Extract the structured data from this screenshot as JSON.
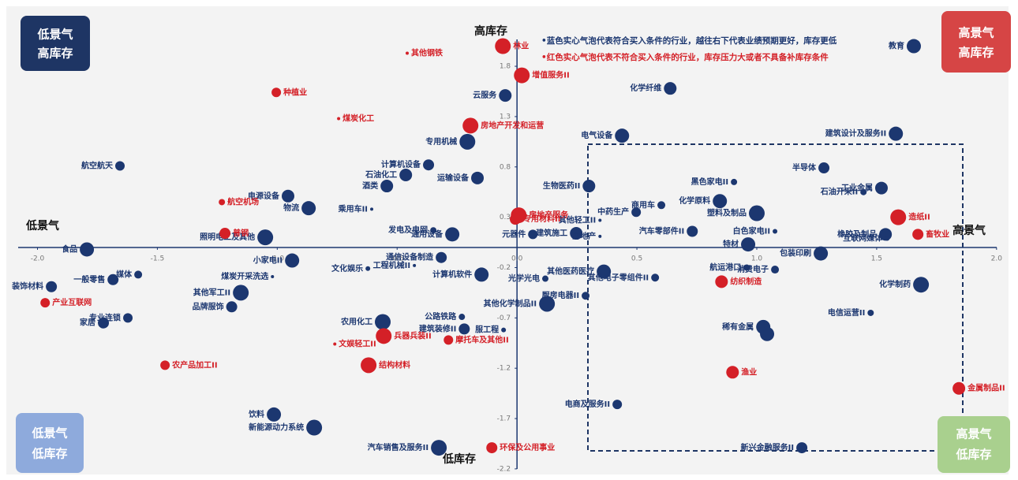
{
  "chart_data": {
    "type": "bubble",
    "x_left_label": "低景气",
    "x_right_label": "高景气",
    "y_top_label": "高库存",
    "y_bottom_label": "低库存",
    "quadrant_labels": {
      "top_left": [
        "低景气",
        "高库存"
      ],
      "top_right": [
        "高景气",
        "高库存"
      ],
      "bottom_left": [
        "低景气",
        "低库存"
      ],
      "bottom_right": [
        "高景气",
        "低库存"
      ]
    },
    "notes": [
      "•蓝色实心气泡代表符合买入条件的行业，越往右下代表业绩预期更好，库存更低",
      "•红色实心气泡代表不符合买入条件的行业，库存压力大或者不具备补库存条件"
    ],
    "xlim": [
      -2.13,
      2.05
    ],
    "ylim": [
      -2.24,
      2.38
    ],
    "xticks": [
      {
        "value": -2,
        "label": "-2.0"
      },
      -1.5,
      {
        "value": -1,
        "label": "-1.0"
      },
      -0.5,
      {
        "value": 0,
        "label": "0.0"
      },
      0.5,
      {
        "value": 1,
        "label": "1.0"
      },
      1.5,
      {
        "value": 2,
        "label": "2.0"
      }
    ],
    "yticks": [
      1.8,
      1.3,
      0.8,
      0.3,
      -0.2,
      -0.7,
      -1.2,
      -1.7,
      -2.2
    ],
    "series": [
      {
        "color": "#1c3770",
        "labels": [
          "教育",
          "化学纤维",
          "云服务",
          "专用机械",
          "电气设备",
          "建筑设计及服务II",
          "航空航天",
          "计算机设备",
          "石油化工",
          "酒类",
          "运输设备",
          "半导体",
          "工业金属",
          "石油开采II",
          "生物医药II",
          "黑色家电II",
          "电源设备",
          "物流",
          "乘用车II",
          "化学原料",
          "商用车",
          "中药生产",
          "其他轻工II",
          "塑料及制品",
          "汽车零部件II",
          "白色家电II",
          "发电及电网",
          "通用设备",
          "元器件",
          "建筑施工",
          "房地产",
          "橡胶及制品",
          "互联网媒体",
          "照明电工及其他",
          "食品",
          "特材",
          "包装印刷",
          "小家电II",
          "通信设备制造",
          "文化娱乐",
          "工程机械II",
          "计算机软件",
          "航运港口",
          "消费电子",
          "其他医药医疗",
          "光学光电",
          "媒体",
          "一般零售",
          "煤炭开采洗选",
          "装饰材料",
          "其他电子零组件II",
          "化学制药",
          "其他军工II",
          "品牌服饰",
          "厨房电器II",
          "其他化学制品II",
          "电信运营II",
          "专业连锁",
          "家居",
          "公路铁路",
          "农用化工",
          "建筑装修II",
          "服工程",
          "稀有金属",
          null,
          "电商及服务II",
          "饮料",
          "新能源动力系统",
          "汽车销售及服务II",
          "新兴金融服务II"
        ],
        "x": [
          1.655,
          0.639,
          -0.049,
          -0.207,
          0.438,
          1.58,
          -1.656,
          -0.369,
          -0.464,
          -0.543,
          -0.165,
          1.28,
          1.52,
          1.445,
          0.3,
          0.905,
          -0.955,
          -0.869,
          -0.606,
          0.846,
          0.602,
          0.497,
          0.346,
          1.0,
          0.731,
          1.076,
          -0.349,
          -0.27,
          0.066,
          0.247,
          0.346,
          1.537,
          1.544,
          -1.05,
          -1.794,
          0.964,
          1.267,
          -0.938,
          -0.316,
          -0.622,
          -0.428,
          -0.148,
          0.958,
          1.076,
          0.362,
          0.118,
          -1.58,
          -1.685,
          -1.02,
          -1.942,
          0.576,
          1.685,
          -1.152,
          -1.19,
          0.286,
          0.125,
          1.475,
          -1.623,
          -1.725,
          -0.23,
          -0.56,
          -0.22,
          -0.056,
          1.027,
          1.043,
          0.418,
          -1.014,
          -0.846,
          -0.326,
          1.188
        ],
        "y": [
          2.0,
          1.58,
          1.51,
          1.05,
          1.11,
          1.13,
          0.81,
          0.82,
          0.72,
          0.61,
          0.69,
          0.79,
          0.59,
          0.55,
          0.61,
          0.65,
          0.51,
          0.39,
          0.38,
          0.46,
          0.42,
          0.35,
          0.27,
          0.34,
          0.16,
          0.16,
          0.17,
          0.13,
          0.13,
          0.14,
          0.11,
          0.13,
          0.09,
          0.1,
          -0.02,
          0.03,
          -0.06,
          -0.13,
          -0.1,
          -0.21,
          -0.18,
          -0.27,
          -0.2,
          -0.22,
          -0.24,
          -0.31,
          -0.27,
          -0.32,
          -0.29,
          -0.39,
          -0.3,
          -0.37,
          -0.45,
          -0.59,
          -0.48,
          -0.56,
          -0.65,
          -0.7,
          -0.75,
          -0.69,
          -0.74,
          -0.81,
          -0.82,
          -0.79,
          -0.86,
          -1.56,
          -1.66,
          -1.79,
          -1.99,
          -1.99
        ],
        "sizes": [
          9,
          8,
          8,
          10,
          9,
          9,
          6,
          7,
          8,
          8,
          8,
          7,
          8,
          4,
          8,
          4,
          8,
          9,
          2,
          9,
          5,
          6,
          2,
          10,
          7,
          3,
          4,
          9,
          6,
          8,
          2,
          8,
          3,
          10,
          9,
          9,
          9,
          9,
          7,
          3,
          2,
          9,
          4,
          5,
          9,
          4,
          5,
          7,
          2,
          7,
          5,
          10,
          10,
          7,
          5,
          10,
          4,
          6,
          7,
          4,
          10,
          7,
          3,
          9,
          9,
          6,
          9,
          10,
          10,
          7
        ]
      },
      {
        "color": "#d42027",
        "labels": [
          "林业",
          "其他钢铁",
          "增值服务II",
          "种植业",
          "煤炭化工",
          "房地产开发和运营",
          "航空机场",
          "普钢",
          "房地产服务",
          "专用材料II",
          "造纸II",
          "畜牧业",
          "产业互联网",
          "纺织制造",
          "兵器兵装II",
          "摩托车及其他II",
          "文娱轻工II",
          "农产品加工II",
          "结构材料",
          "渔业",
          "金属制品II",
          "环保及公用事业"
        ],
        "x": [
          -0.059,
          -0.458,
          0.02,
          -1.004,
          -0.744,
          -0.194,
          -1.231,
          -1.218,
          0.007,
          -0.007,
          1.59,
          1.672,
          -1.968,
          0.853,
          -0.556,
          -0.286,
          -0.76,
          -1.468,
          -0.619,
          0.899,
          1.843,
          -0.105
        ],
        "y": [
          2.0,
          1.93,
          1.71,
          1.54,
          1.28,
          1.21,
          0.45,
          0.14,
          0.32,
          0.28,
          0.3,
          0.13,
          -0.55,
          -0.34,
          -0.88,
          -0.92,
          -0.96,
          -1.17,
          -1.17,
          -1.24,
          -1.4,
          -1.99
        ],
        "sizes": [
          10,
          2,
          10,
          6,
          2,
          10,
          4,
          7,
          10,
          7,
          10,
          7,
          6,
          8,
          10,
          6,
          2,
          6,
          10,
          8,
          8,
          7
        ]
      }
    ]
  }
}
